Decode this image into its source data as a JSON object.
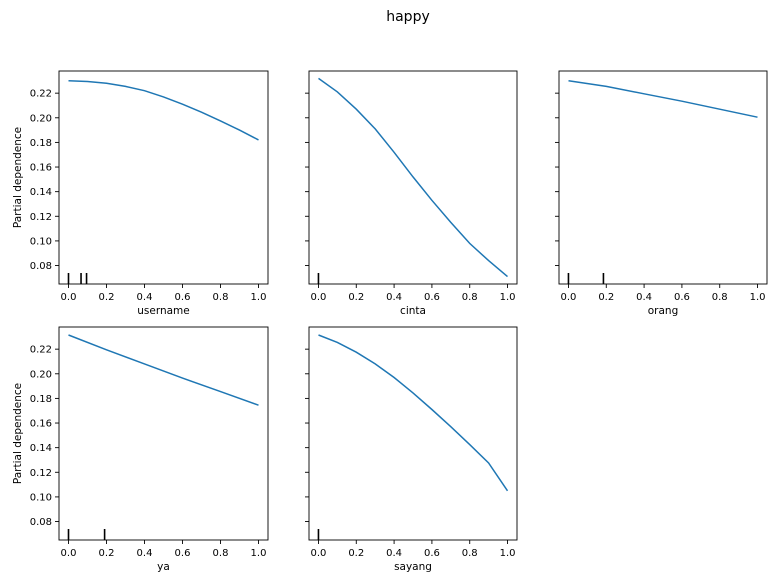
{
  "figure": {
    "title": "happy"
  },
  "chart_data": [
    {
      "type": "line",
      "xlabel": "username",
      "ylabel": "Partial dependence",
      "xlim": [
        -0.05,
        1.05
      ],
      "ylim": [
        0.065,
        0.238
      ],
      "xticks": [
        "0.0",
        "0.2",
        "0.4",
        "0.6",
        "0.8",
        "1.0"
      ],
      "yticks": [
        "0.08",
        "0.10",
        "0.12",
        "0.14",
        "0.16",
        "0.18",
        "0.20",
        "0.22"
      ],
      "series": [
        {
          "x": [
            0.0,
            0.1,
            0.2,
            0.3,
            0.4,
            0.5,
            0.6,
            0.7,
            0.8,
            0.9,
            1.0
          ],
          "y": [
            0.23,
            0.2295,
            0.228,
            0.2255,
            0.222,
            0.217,
            0.211,
            0.2045,
            0.1975,
            0.19,
            0.182
          ],
          "color": "#1f77b4"
        }
      ],
      "rug": [
        0.0,
        0.066,
        0.095
      ]
    },
    {
      "type": "line",
      "xlabel": "cinta",
      "ylabel": "",
      "xlim": [
        -0.05,
        1.05
      ],
      "ylim": [
        0.065,
        0.238
      ],
      "xticks": [
        "0.0",
        "0.2",
        "0.4",
        "0.6",
        "0.8",
        "1.0"
      ],
      "yticks": [],
      "series": [
        {
          "x": [
            0.0,
            0.1,
            0.2,
            0.3,
            0.4,
            0.5,
            0.6,
            0.7,
            0.8,
            0.9,
            1.0
          ],
          "y": [
            0.232,
            0.221,
            0.207,
            0.191,
            0.172,
            0.152,
            0.133,
            0.115,
            0.098,
            0.084,
            0.071
          ],
          "color": "#1f77b4"
        }
      ],
      "rug": [
        0.0
      ]
    },
    {
      "type": "line",
      "xlabel": "orang",
      "ylabel": "",
      "xlim": [
        -0.05,
        1.05
      ],
      "ylim": [
        0.065,
        0.238
      ],
      "xticks": [
        "0.0",
        "0.2",
        "0.4",
        "0.6",
        "0.8",
        "1.0"
      ],
      "yticks": [],
      "series": [
        {
          "x": [
            0.0,
            0.2,
            0.4,
            0.6,
            0.8,
            1.0
          ],
          "y": [
            0.23,
            0.2255,
            0.2195,
            0.2135,
            0.207,
            0.2005
          ],
          "color": "#1f77b4"
        }
      ],
      "rug": [
        0.0,
        0.185
      ]
    },
    {
      "type": "line",
      "xlabel": "ya",
      "ylabel": "Partial dependence",
      "xlim": [
        -0.05,
        1.05
      ],
      "ylim": [
        0.065,
        0.238
      ],
      "xticks": [
        "0.0",
        "0.2",
        "0.4",
        "0.6",
        "0.8",
        "1.0"
      ],
      "yticks": [
        "0.08",
        "0.10",
        "0.12",
        "0.14",
        "0.16",
        "0.18",
        "0.20",
        "0.22"
      ],
      "series": [
        {
          "x": [
            0.0,
            0.2,
            0.4,
            0.6,
            0.8,
            1.0
          ],
          "y": [
            0.2315,
            0.2195,
            0.208,
            0.1965,
            0.1855,
            0.1745
          ],
          "color": "#1f77b4"
        }
      ],
      "rug": [
        0.0,
        0.19
      ]
    },
    {
      "type": "line",
      "xlabel": "sayang",
      "ylabel": "",
      "xlim": [
        -0.05,
        1.05
      ],
      "ylim": [
        0.065,
        0.238
      ],
      "xticks": [
        "0.0",
        "0.2",
        "0.4",
        "0.6",
        "0.8",
        "1.0"
      ],
      "yticks": [],
      "series": [
        {
          "x": [
            0.0,
            0.1,
            0.2,
            0.3,
            0.4,
            0.5,
            0.6,
            0.7,
            0.8,
            0.9,
            1.0
          ],
          "y": [
            0.2315,
            0.2255,
            0.2175,
            0.208,
            0.197,
            0.1845,
            0.171,
            0.157,
            0.1425,
            0.1275,
            0.105
          ],
          "color": "#1f77b4"
        }
      ],
      "rug": [
        0.0
      ]
    }
  ]
}
